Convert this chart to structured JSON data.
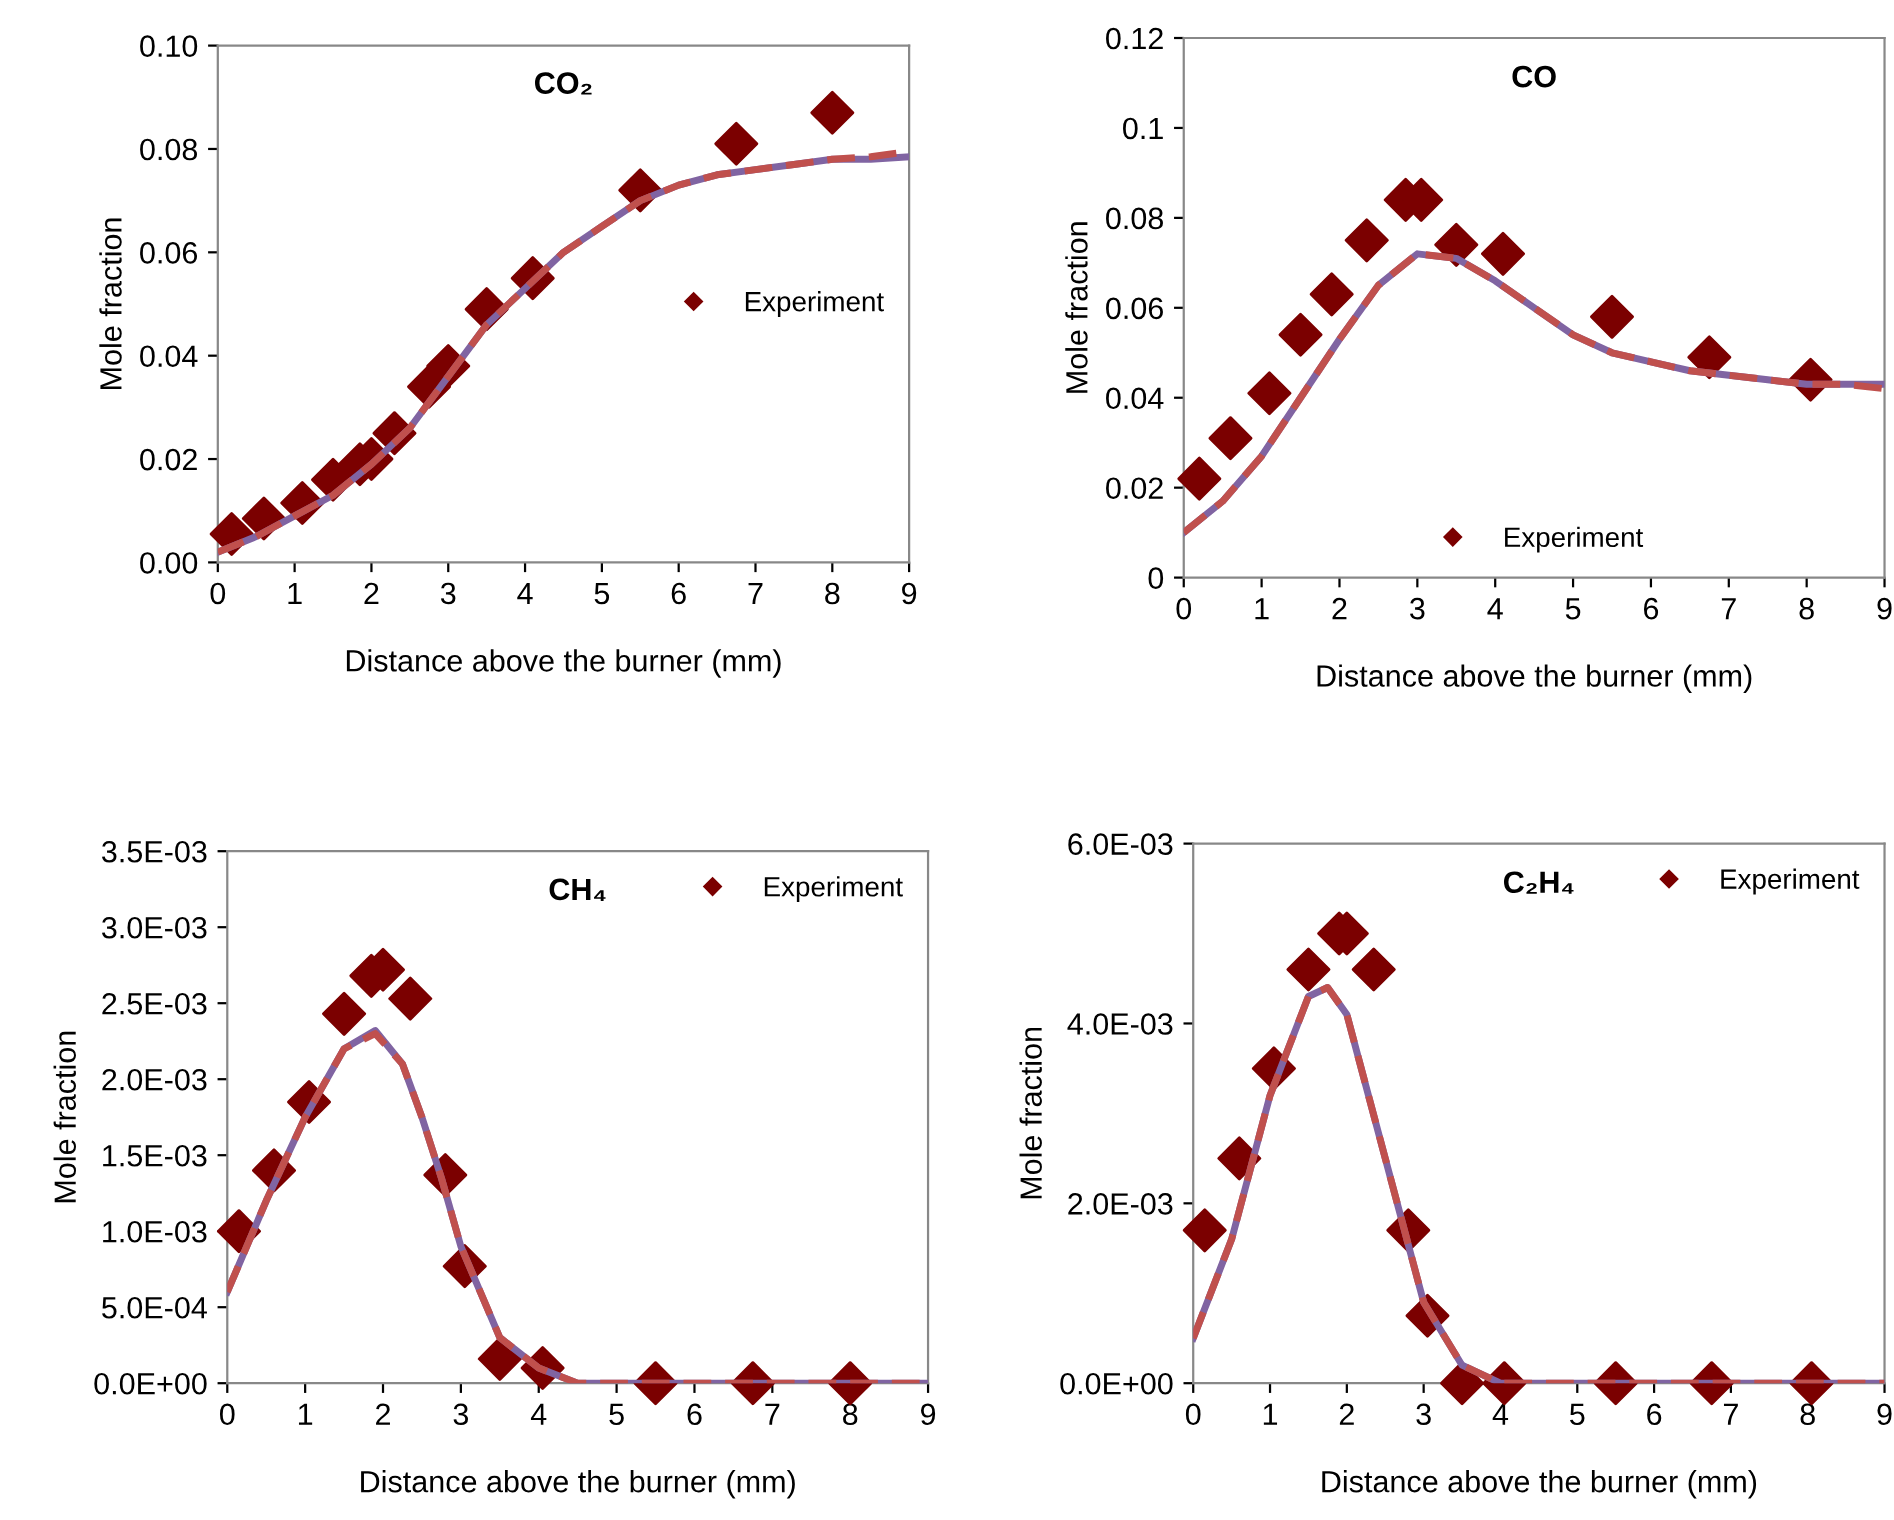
{
  "chart_data": [
    {
      "type": "line",
      "title": "CO₂",
      "xlabel": "Distance above the burner (mm)",
      "ylabel": "Mole fraction",
      "xlim": [
        0,
        9
      ],
      "xticks": [
        0,
        1,
        2,
        3,
        4,
        5,
        6,
        7,
        8,
        9
      ],
      "ylim": [
        0,
        0.1
      ],
      "yticks": [
        {
          "value": 0,
          "label": "0.00"
        },
        {
          "value": 0.02,
          "label": "0.02"
        },
        {
          "value": 0.04,
          "label": "0.04"
        },
        {
          "value": 0.06,
          "label": "0.06"
        },
        {
          "value": 0.08,
          "label": "0.08"
        },
        {
          "value": 0.1,
          "label": "0.10"
        }
      ],
      "grid": false,
      "legend": "right",
      "series": [
        {
          "name": "Experiment",
          "type": "scatter",
          "marker": "diamond",
          "color": "#7b0000",
          "x": [
            0.18,
            0.6,
            1.1,
            1.5,
            1.85,
            2.0,
            2.3,
            2.75,
            3.0,
            3.5,
            4.1,
            5.5,
            6.75,
            8.0
          ],
          "values": [
            0.0055,
            0.0085,
            0.0115,
            0.016,
            0.019,
            0.02,
            0.025,
            0.034,
            0.038,
            0.049,
            0.055,
            0.072,
            0.081,
            0.087
          ]
        },
        {
          "line_style": "solid",
          "color": "#8064a2",
          "x": [
            0,
            0.5,
            1,
            1.5,
            2,
            2.5,
            3,
            3.5,
            4,
            4.5,
            5,
            5.5,
            6,
            6.5,
            7,
            7.5,
            8,
            8.5,
            9
          ],
          "values": [
            0.002,
            0.005,
            0.009,
            0.013,
            0.019,
            0.026,
            0.036,
            0.046,
            0.053,
            0.06,
            0.065,
            0.07,
            0.073,
            0.075,
            0.076,
            0.077,
            0.078,
            0.078,
            0.0785
          ]
        },
        {
          "line_style": "dashed",
          "color": "#c0504d",
          "x": [
            0,
            0.5,
            1,
            1.5,
            2,
            2.5,
            3,
            3.5,
            4,
            4.5,
            5,
            5.5,
            6,
            6.5,
            7,
            7.5,
            8,
            8.5,
            9
          ],
          "values": [
            0.002,
            0.005,
            0.009,
            0.013,
            0.019,
            0.026,
            0.036,
            0.046,
            0.053,
            0.06,
            0.065,
            0.07,
            0.073,
            0.075,
            0.076,
            0.077,
            0.078,
            0.0785,
            0.0795
          ]
        }
      ]
    },
    {
      "type": "line",
      "title": "CO",
      "xlabel": "Distance above the burner (mm)",
      "ylabel": "Mole fraction",
      "xlim": [
        0,
        9
      ],
      "xticks": [
        0,
        1,
        2,
        3,
        4,
        5,
        6,
        7,
        8,
        9
      ],
      "ylim": [
        0,
        0.12
      ],
      "yticks": [
        0,
        0.02,
        0.04,
        0.06,
        0.08,
        0.1,
        0.12
      ],
      "grid": false,
      "legend": "bottom",
      "series": [
        {
          "name": "Experiment",
          "type": "scatter",
          "marker": "diamond",
          "color": "#7b0000",
          "x": [
            0.2,
            0.6,
            1.1,
            1.5,
            1.9,
            2.35,
            2.85,
            3.05,
            3.5,
            4.1,
            5.5,
            6.75,
            8.05
          ],
          "values": [
            0.022,
            0.031,
            0.041,
            0.054,
            0.063,
            0.075,
            0.084,
            0.084,
            0.074,
            0.072,
            0.058,
            0.049,
            0.044
          ]
        },
        {
          "line_style": "solid",
          "color": "#8064a2",
          "x": [
            0,
            0.5,
            1,
            1.5,
            2,
            2.5,
            3,
            3.5,
            4,
            4.5,
            5,
            5.5,
            6,
            6.5,
            7,
            7.5,
            8,
            8.5,
            9
          ],
          "values": [
            0.01,
            0.017,
            0.027,
            0.04,
            0.053,
            0.065,
            0.072,
            0.071,
            0.066,
            0.06,
            0.054,
            0.05,
            0.048,
            0.046,
            0.045,
            0.044,
            0.043,
            0.043,
            0.043
          ]
        },
        {
          "line_style": "dashed",
          "color": "#c0504d",
          "x": [
            0,
            0.5,
            1,
            1.5,
            2,
            2.5,
            3,
            3.5,
            4,
            4.5,
            5,
            5.5,
            6,
            6.5,
            7,
            7.5,
            8,
            8.5,
            9
          ],
          "values": [
            0.01,
            0.017,
            0.027,
            0.04,
            0.053,
            0.065,
            0.072,
            0.071,
            0.066,
            0.06,
            0.054,
            0.05,
            0.048,
            0.046,
            0.045,
            0.044,
            0.043,
            0.043,
            0.042
          ]
        }
      ]
    },
    {
      "type": "line",
      "title": "CH₄",
      "xlabel": "Distance above the burner (mm)",
      "ylabel": "Mole fraction",
      "xlim": [
        0,
        9
      ],
      "xticks": [
        0,
        1,
        2,
        3,
        4,
        5,
        6,
        7,
        8,
        9
      ],
      "ylim": [
        0,
        0.0035
      ],
      "yticks": [
        {
          "value": 0,
          "label": "0.0E+00"
        },
        {
          "value": 0.0005,
          "label": "5.0E-04"
        },
        {
          "value": 0.001,
          "label": "1.0E-03"
        },
        {
          "value": 0.0015,
          "label": "1.5E-03"
        },
        {
          "value": 0.002,
          "label": "2.0E-03"
        },
        {
          "value": 0.0025,
          "label": "2.5E-03"
        },
        {
          "value": 0.003,
          "label": "3.0E-03"
        },
        {
          "value": 0.0035,
          "label": "3.5E-03"
        }
      ],
      "grid": false,
      "legend": "top right",
      "series": [
        {
          "name": "Experiment",
          "type": "scatter",
          "marker": "diamond",
          "color": "#7b0000",
          "x": [
            0.15,
            0.6,
            1.05,
            1.5,
            1.85,
            2.0,
            2.35,
            2.8,
            3.05,
            3.5,
            4.05,
            5.5,
            6.75,
            8.0
          ],
          "values": [
            0.001,
            0.0014,
            0.00185,
            0.00243,
            0.00268,
            0.00272,
            0.00253,
            0.00137,
            0.00077,
            0.00016,
            0.0001,
            0,
            0,
            0
          ]
        },
        {
          "line_style": "solid",
          "color": "#8064a2",
          "x": [
            0,
            0.5,
            1,
            1.5,
            1.9,
            2.25,
            2.5,
            2.75,
            3,
            3.5,
            4,
            4.5,
            5,
            6,
            7,
            8,
            9
          ],
          "values": [
            0.0006,
            0.0012,
            0.00175,
            0.0022,
            0.00232,
            0.0021,
            0.00175,
            0.00135,
            0.0009,
            0.0003,
            0.0001,
            0,
            0,
            0,
            0,
            0,
            0
          ]
        },
        {
          "line_style": "dashed",
          "color": "#c0504d",
          "x": [
            0,
            0.5,
            1,
            1.5,
            1.9,
            2.25,
            2.5,
            2.75,
            3,
            3.5,
            4,
            4.5,
            5,
            6,
            7,
            8,
            9
          ],
          "values": [
            0.0006,
            0.0012,
            0.00175,
            0.0022,
            0.0023,
            0.0021,
            0.00175,
            0.00135,
            0.0009,
            0.0003,
            0.0001,
            0,
            0,
            0,
            0,
            0,
            0
          ]
        }
      ]
    },
    {
      "type": "line",
      "title": "C₂H₄",
      "xlabel": "Distance above the burner (mm)",
      "ylabel": "Mole fraction",
      "xlim": [
        0,
        9
      ],
      "xticks": [
        0,
        1,
        2,
        3,
        4,
        5,
        6,
        7,
        8,
        9
      ],
      "ylim": [
        0,
        0.006
      ],
      "yticks": [
        {
          "value": 0,
          "label": "0.0E+00"
        },
        {
          "value": 0.002,
          "label": "2.0E-03"
        },
        {
          "value": 0.004,
          "label": "4.0E-03"
        },
        {
          "value": 0.006,
          "label": "6.0E-03"
        }
      ],
      "grid": false,
      "legend": "top right",
      "series": [
        {
          "name": "Experiment",
          "type": "scatter",
          "marker": "diamond",
          "color": "#7b0000",
          "x": [
            0.15,
            0.6,
            1.05,
            1.5,
            1.9,
            2.0,
            2.35,
            2.8,
            3.05,
            3.5,
            4.05,
            5.5,
            6.75,
            8.05
          ],
          "values": [
            0.0017,
            0.0025,
            0.0035,
            0.0046,
            0.005,
            0.005,
            0.0046,
            0.0017,
            0.00075,
            0,
            0,
            0,
            0,
            0
          ]
        },
        {
          "line_style": "solid",
          "color": "#8064a2",
          "x": [
            0,
            0.5,
            1,
            1.5,
            1.75,
            2,
            2.5,
            3,
            3.5,
            4,
            4.5,
            5,
            6,
            7,
            8,
            9
          ],
          "values": [
            0.0005,
            0.0016,
            0.0032,
            0.0043,
            0.0044,
            0.0041,
            0.0025,
            0.0009,
            0.0002,
            0,
            0,
            0,
            0,
            0,
            0,
            0
          ]
        },
        {
          "line_style": "dashed",
          "color": "#c0504d",
          "x": [
            0,
            0.5,
            1,
            1.5,
            1.75,
            2,
            2.5,
            3,
            3.5,
            4,
            4.5,
            5,
            6,
            7,
            8,
            9
          ],
          "values": [
            0.0005,
            0.0016,
            0.0032,
            0.0043,
            0.0044,
            0.0041,
            0.0025,
            0.0009,
            0.0002,
            0,
            0,
            0,
            0,
            0,
            0,
            0
          ]
        }
      ]
    }
  ]
}
